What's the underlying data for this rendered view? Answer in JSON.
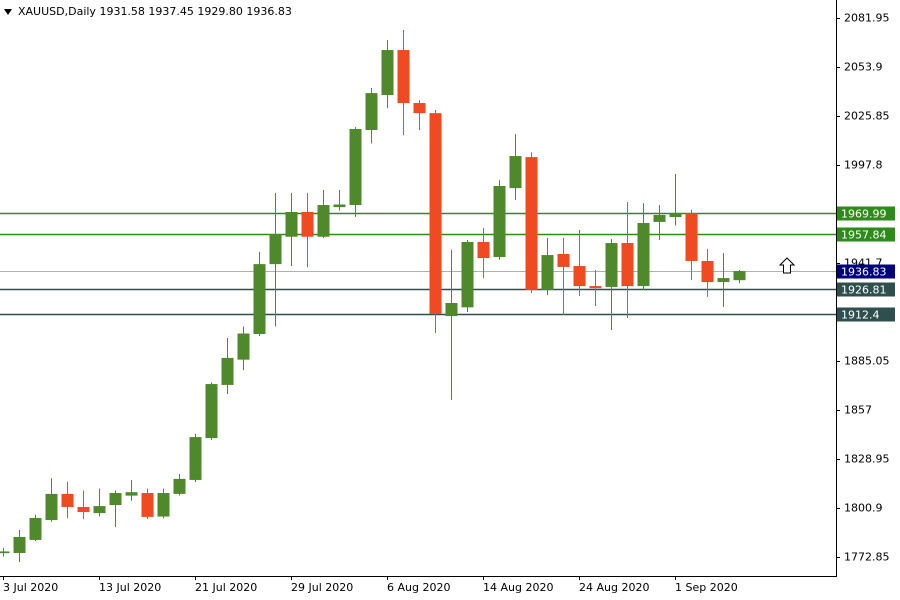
{
  "chart_data": {
    "type": "candlestick",
    "title": "XAUUSD,Daily  1931.58 1937.45 1929.80 1936.83",
    "categories": [
      "3 Jul 2020",
      null,
      null,
      null,
      null,
      null,
      "13 Jul 2020",
      null,
      null,
      null,
      null,
      null,
      "21 Jul 2020",
      null,
      null,
      null,
      null,
      null,
      "29 Jul 2020",
      null,
      null,
      null,
      null,
      null,
      "6 Aug 2020",
      null,
      null,
      null,
      null,
      null,
      "14 Aug 2020",
      null,
      null,
      null,
      null,
      null,
      "24 Aug 2020",
      null,
      null,
      null,
      null,
      null,
      "1 Sep 2020",
      null,
      null,
      null,
      null
    ],
    "open": [
      1775,
      1775.1,
      1782.6,
      1794,
      1809,
      1801.5,
      1798,
      1802.6,
      1808,
      1809.5,
      1796,
      1809,
      1817,
      1841,
      1871.5,
      1886,
      1900.7,
      1940.8,
      1956.5,
      1970.7,
      1956.5,
      1973.5,
      1974.7,
      2017.7,
      2037.8,
      2063.6,
      2033.2,
      2027.4,
      1911,
      1916,
      1953.5,
      1944.9,
      1984.4,
      2002.2,
      1926,
      1946.6,
      1939.7,
      1928.2,
      1927.7,
      1952.9,
      1928.2,
      1965,
      1967.8,
      1970,
      1942.6,
      1930.5,
      1931.58
    ],
    "high": [
      1778,
      1788.3,
      1797,
      1818,
      1816,
      1811,
      1812,
      1811,
      1817,
      1812,
      1812,
      1820.4,
      1843.4,
      1873,
      1898.4,
      1905,
      1947.8,
      1981.6,
      1981.6,
      1981.6,
      1983.3,
      1983.3,
      2019.5,
      2041.8,
      2069.3,
      2075.1,
      2034.9,
      2029.2,
      1949,
      1954.6,
      1961.5,
      1989,
      2015.4,
      2005,
      1955.8,
      1955.8,
      1960.4,
      1937.4,
      1955.2,
      1976.4,
      1975.8,
      1974.7,
      1992.5,
      1971.9,
      1949.5,
      1947.2,
      1937.45
    ],
    "low": [
      1773,
      1769.9,
      1782,
      1793,
      1795,
      1794.6,
      1796,
      1790,
      1805,
      1794.6,
      1795,
      1808,
      1815.8,
      1840,
      1866.3,
      1880,
      1899.6,
      1905,
      1939.7,
      1939,
      1955.8,
      1971.5,
      1967.8,
      2010,
      2030.3,
      2014.8,
      2017.7,
      1901.3,
      1862.9,
      1913.3,
      1932.8,
      1943.2,
      1977.6,
      1924.2,
      1923,
      1911.6,
      1922.5,
      1916.8,
      1903,
      1909.9,
      1925.9,
      1954.6,
      1963,
      1931.7,
      1922,
      1916.2,
      1929.8
    ],
    "close": [
      1776,
      1784.3,
      1795.2,
      1809,
      1801.5,
      1798.6,
      1802,
      1809.5,
      1810,
      1795.8,
      1809.5,
      1817.6,
      1841.6,
      1872,
      1887,
      1901,
      1940.8,
      1958,
      1970.7,
      1956.5,
      1974.7,
      1975,
      2018.3,
      2038.9,
      2063.6,
      2033.2,
      2027.4,
      1912.2,
      1918.5,
      1953.5,
      1944.3,
      1985.6,
      2002.8,
      1926,
      1946,
      1939.2,
      1928.2,
      1927,
      1952.9,
      1928.2,
      1964.4,
      1969,
      1970,
      1942.6,
      1930.5,
      1932.8,
      1936.83
    ],
    "up_color": "#4e8a2c",
    "down_color": "#f04a23",
    "ylim": [
      1761.9,
      2092.3
    ],
    "yticks": [
      2081.95,
      2053.9,
      2025.85,
      1997.8,
      1941.7,
      1885.05,
      1857.0,
      1828.95,
      1800.9,
      1772.85
    ],
    "price_lines": [
      {
        "value": 1969.99,
        "color": "#2e8b1a"
      },
      {
        "value": 1957.84,
        "color": "#2e8b1a"
      },
      {
        "value": 1926.81,
        "color": "#2f4f4f"
      },
      {
        "value": 1912.4,
        "color": "#2f4f4f"
      }
    ],
    "current_price": 1936.83,
    "current_color": "#000080"
  }
}
